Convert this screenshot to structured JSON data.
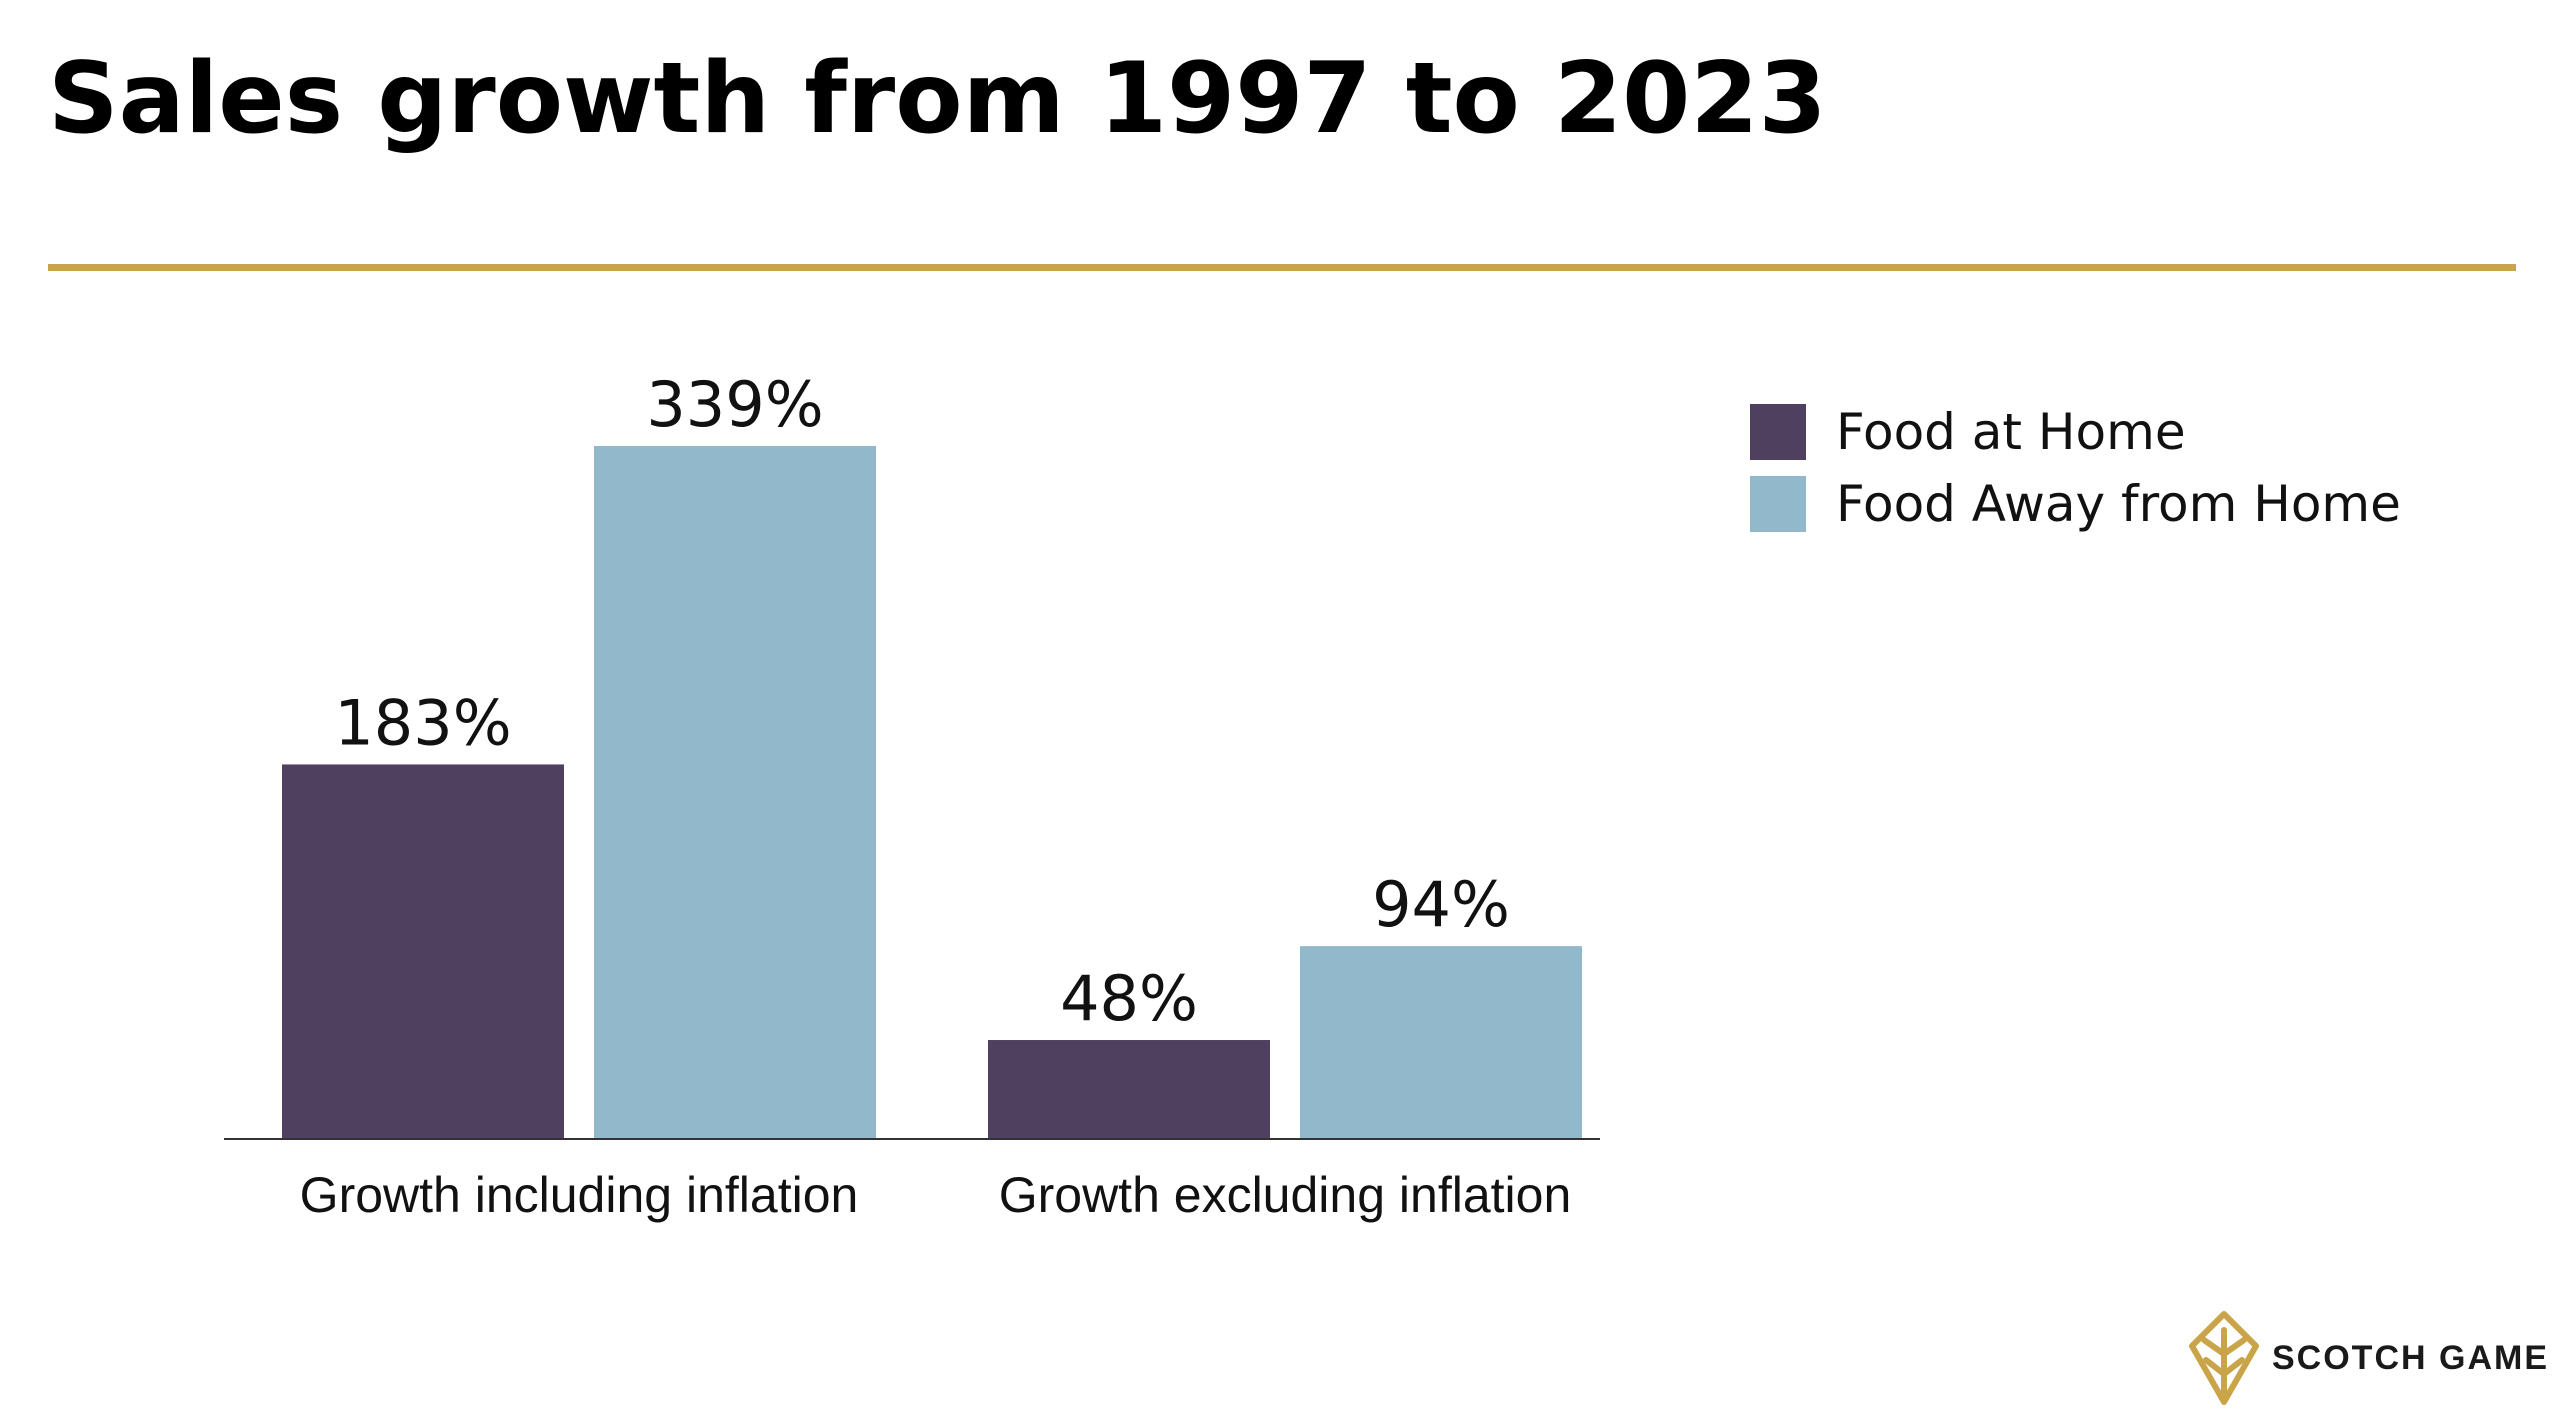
{
  "title": "Sales growth from 1997 to 2023",
  "colors": {
    "rule": "#c9a448",
    "food_at_home": "#50405f",
    "food_away": "#92b8cb",
    "axis": "#333333",
    "logo": "#c9a448"
  },
  "legend": {
    "items": [
      {
        "label": "Food at Home",
        "color": "#50405f"
      },
      {
        "label": "Food Away from Home",
        "color": "#92b8cb"
      }
    ]
  },
  "brand": {
    "name": "SCOTCH GAME",
    "icon": "wheat-leaf-logo-icon"
  },
  "chart_data": {
    "type": "bar",
    "title": "Sales growth from 1997 to 2023",
    "categories": [
      "Growth including inflation",
      "Growth excluding inflation"
    ],
    "series": [
      {
        "name": "Food at Home",
        "values": [
          183,
          48
        ],
        "labels": [
          "183%",
          "48%"
        ],
        "color": "#50405f"
      },
      {
        "name": "Food Away from Home",
        "values": [
          339,
          94
        ],
        "labels": [
          "339%",
          "94%"
        ],
        "color": "#92b8cb"
      }
    ],
    "xlabel": "",
    "ylabel": "",
    "ylim": [
      0,
      339
    ],
    "grid": false,
    "legend_position": "top-right"
  }
}
